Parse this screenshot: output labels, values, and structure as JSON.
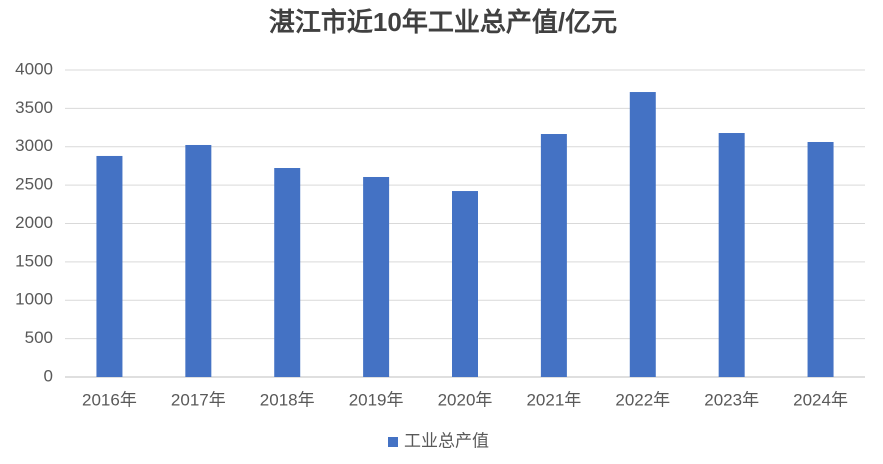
{
  "chart_data": {
    "type": "bar",
    "title": "湛江市近10年工业总产值/亿元",
    "categories": [
      "2016年",
      "2017年",
      "2018年",
      "2019年",
      "2020年",
      "2021年",
      "2022年",
      "2023年",
      "2024年"
    ],
    "series": [
      {
        "name": "工业总产值",
        "color": "#4472c4",
        "values": [
          2880,
          3023,
          2723,
          2606,
          2423,
          3166,
          3713,
          3179,
          3062
        ]
      }
    ],
    "ylim": [
      0,
      4000
    ],
    "yticks": [
      0,
      500,
      1000,
      1500,
      2000,
      2500,
      3000,
      3500,
      4000
    ],
    "grid": true,
    "legend": "bottom"
  }
}
